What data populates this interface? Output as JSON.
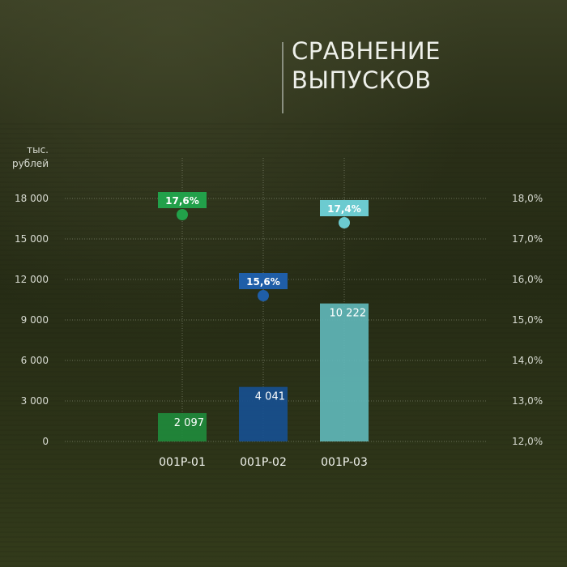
{
  "title": {
    "line1": "СРАВНЕНИЕ",
    "line2": "ВЫПУСКОВ"
  },
  "unit_label": {
    "line1": "тыс.",
    "line2": "рублей"
  },
  "colors": {
    "bar_001P_01": "#1f8a3c",
    "bar_001P_02": "#174f90",
    "bar_001P_03": "#5fb6b8",
    "dot_001P_01": "#22a04a",
    "dot_001P_02": "#1f5ea8",
    "dot_001P_03": "#6ccbd0"
  },
  "chart_data": {
    "type": "bar",
    "title": "СРАВНЕНИЕ ВЫПУСКОВ",
    "ylabel": "тыс. рублей",
    "ylim": [
      0,
      18000
    ],
    "y2lim": [
      12.0,
      18.0
    ],
    "grid": true,
    "categories": [
      "001P-01",
      "001P-02",
      "001P-03"
    ],
    "left_ticks": [
      "0",
      "3 000",
      "6 000",
      "9 000",
      "12 000",
      "15 000",
      "18 000"
    ],
    "left_tick_values": [
      0,
      3000,
      6000,
      9000,
      12000,
      15000,
      18000
    ],
    "right_ticks": [
      "12,0%",
      "13,0%",
      "14,0%",
      "15,0%",
      "16,0%",
      "17,0%",
      "18,0%"
    ],
    "right_tick_values": [
      12.0,
      13.0,
      14.0,
      15.0,
      16.0,
      17.0,
      18.0
    ],
    "series": [
      {
        "values": [
          2097,
          4041,
          10222
        ],
        "labels": [
          "2 097",
          "4 041",
          "10 222"
        ]
      },
      {
        "values": [
          17.6,
          15.6,
          17.4
        ],
        "labels": [
          "17,6%",
          "15,6%",
          "17,4%"
        ]
      }
    ]
  }
}
